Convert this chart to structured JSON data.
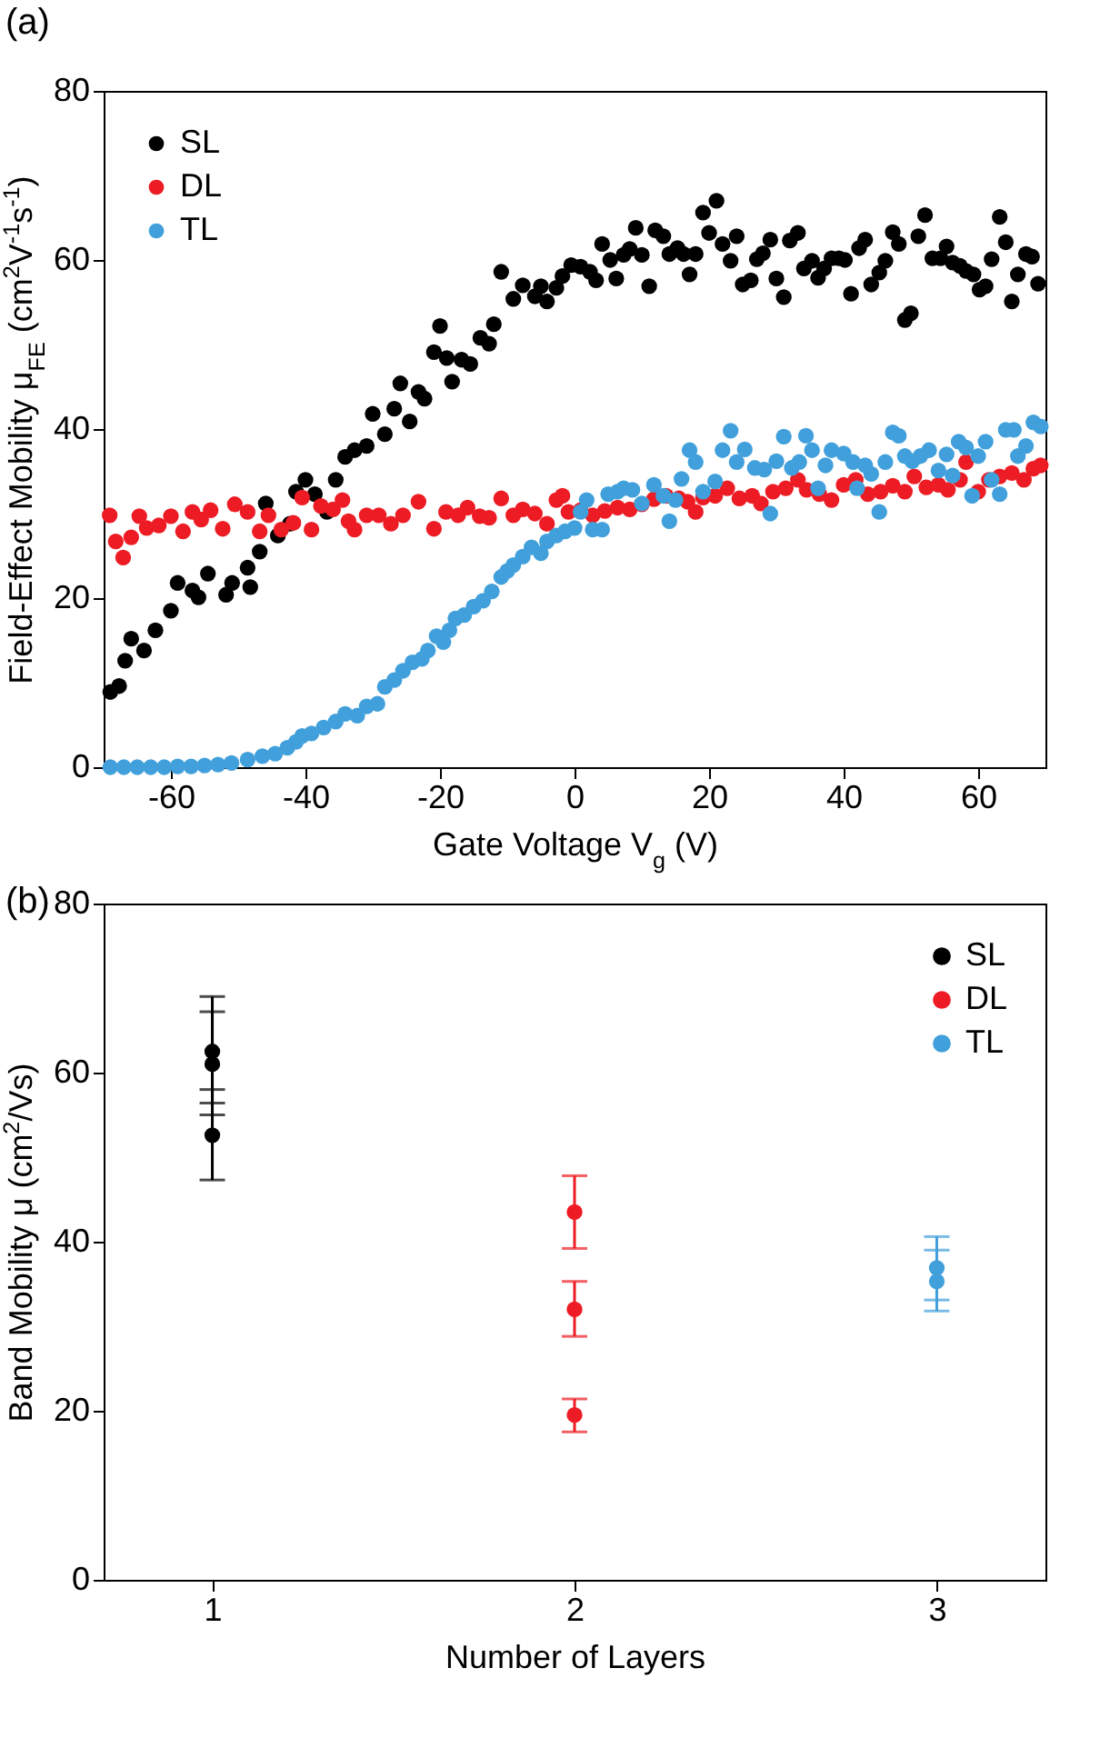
{
  "chart_data": [
    {
      "type": "scatter",
      "title": "(a)",
      "xlabel": "Gate Voltage V$_{g}$ (V)",
      "ylabel": "Field-Effect Mobility μ$_{FE}$ (cm$^{2}$V$^{-1}$s$^{-1}$)",
      "xlim": [
        -70,
        70
      ],
      "xticks": [
        -60,
        -40,
        -20,
        0,
        20,
        40,
        60
      ],
      "ylim": [
        0,
        80
      ],
      "yticks": [
        0,
        20,
        40,
        60,
        80
      ],
      "grid": false,
      "legend": "top left",
      "marker": "circle",
      "series": [
        {
          "name": "SL",
          "color": "#000000",
          "x": [
            -69,
            -67.7,
            -66.8,
            -65.9,
            -64,
            -62.3,
            -60,
            -59,
            -56.8,
            -55.9,
            -54.5,
            -51.8,
            -50.9,
            -48.6,
            -48.2,
            -46.8,
            -45.9,
            -44.1,
            -42.3,
            -41.4,
            -40,
            -38.6,
            -36.8,
            -35.5,
            -34.1,
            -32.7,
            -30.9,
            -30,
            -28.2,
            -26.8,
            -25.9,
            -24.5,
            -23.2,
            -22.3,
            -20.9,
            -20,
            -19,
            -18.2,
            -16.8,
            -15.5,
            -14,
            -12.7,
            -12,
            -10.9,
            -9.1,
            -7.7,
            -5.9,
            -5,
            -4.1,
            -2.7,
            -1.8,
            -0.5,
            0.9,
            2.3,
            3.2,
            4.1,
            5.3,
            6.2,
            7.3,
            8.2,
            9.1,
            10,
            11.1,
            12,
            13.2,
            14.1,
            15.3,
            16.2,
            17.1,
            18,
            19.1,
            20,
            21.1,
            22,
            23.2,
            24.1,
            25,
            26.2,
            27.1,
            28,
            29.1,
            30,
            31.1,
            32,
            33.2,
            34.1,
            35.3,
            36.2,
            37.1,
            38.2,
            39.3,
            40.2,
            41.1,
            42.3,
            43.2,
            44.1,
            45.3,
            46.2,
            47.3,
            48.2,
            49.1,
            50,
            51.1,
            52.1,
            53.2,
            54.4,
            55.3,
            56.2,
            57.3,
            58.2,
            59.3,
            60.2,
            61.1,
            62,
            63.2,
            64.1,
            65,
            65.9,
            67.1,
            68,
            68.9
          ],
          "values": [
            8.9,
            9.6,
            12.6,
            15.2,
            13.8,
            16.2,
            18.5,
            21.8,
            20.9,
            20.1,
            22.9,
            20.4,
            21.8,
            23.6,
            21.3,
            25.5,
            31.2,
            27.4,
            28.8,
            32.6,
            34,
            32.3,
            30.2,
            34,
            36.7,
            37.5,
            38,
            41.8,
            39.4,
            42.4,
            45.4,
            40.9,
            44.4,
            43.6,
            49.1,
            52.2,
            48.4,
            45.6,
            48.2,
            47.7,
            50.8,
            50.1,
            52.4,
            58.6,
            55.4,
            57,
            55.7,
            56.9,
            55.1,
            56.7,
            58.1,
            59.4,
            59.2,
            58.6,
            57.6,
            61.9,
            60,
            57.8,
            60.6,
            61.3,
            63.8,
            60.6,
            56.9,
            63.5,
            62.8,
            60.7,
            61.4,
            60.7,
            58.3,
            60.7,
            65.6,
            63.2,
            67,
            61.9,
            59.9,
            62.8,
            57.1,
            57.6,
            60.1,
            60.8,
            62.4,
            57.8,
            55.6,
            62.3,
            63.2,
            59,
            59.9,
            57.9,
            59,
            60.2,
            60.2,
            60,
            56,
            61.4,
            62.4,
            57.1,
            58.5,
            59.9,
            63.3,
            61.9,
            52.9,
            53.7,
            62.8,
            65.3,
            60.2,
            60.2,
            61.6,
            59.7,
            59.3,
            58.7,
            58.3,
            56.5,
            56.9,
            60.1,
            65.1,
            62.1,
            55.1,
            58.3,
            60.7,
            60.4,
            57.2
          ]
        },
        {
          "name": "DL",
          "color": "#ed1c24",
          "x": [
            -69.1,
            -68.2,
            -67.1,
            -65.9,
            -64.7,
            -63.6,
            -61.8,
            -60,
            -58.2,
            -56.8,
            -55.5,
            -54.1,
            -52.3,
            -50.5,
            -48.6,
            -46.8,
            -45.5,
            -43.6,
            -41.8,
            -40.5,
            -39.1,
            -37.7,
            -35.9,
            -34.5,
            -33.6,
            -32.7,
            -30.9,
            -29.1,
            -27.3,
            -25.5,
            -23.2,
            -20.9,
            -19.1,
            -17.3,
            -15.9,
            -14.1,
            -12.7,
            -10.9,
            -9.1,
            -7.7,
            -5.9,
            -4.1,
            -2.7,
            -1.8,
            -0.9,
            0.9,
            2.7,
            4.5,
            6.4,
            8.2,
            10,
            11.8,
            13.6,
            15.5,
            16.8,
            18,
            19.1,
            20.9,
            22.7,
            24.5,
            26.4,
            27.7,
            29.5,
            31.4,
            33.2,
            34.5,
            36.4,
            38.2,
            40,
            41.8,
            43.6,
            45.5,
            47.3,
            49.1,
            50.5,
            52.3,
            54.1,
            55.5,
            57.3,
            58.2,
            60,
            61.6,
            63.2,
            65,
            66.8,
            68.2,
            69.3
          ],
          "values": [
            29.8,
            26.7,
            24.8,
            27.2,
            29.7,
            28.3,
            28.6,
            29.7,
            27.9,
            30.2,
            29.3,
            30.4,
            28.2,
            31.1,
            30.2,
            27.9,
            29.8,
            28.1,
            28.9,
            31.9,
            28.1,
            30.9,
            30.5,
            31.6,
            29.1,
            28.1,
            29.8,
            29.8,
            28.8,
            29.8,
            31.4,
            28.2,
            30.2,
            29.8,
            30.7,
            29.7,
            29.5,
            31.8,
            29.8,
            30.5,
            30,
            28.8,
            31.6,
            32.1,
            30.2,
            30.4,
            29.8,
            30.3,
            30.7,
            30.5,
            31.1,
            31.7,
            32.1,
            31.8,
            31.4,
            30.2,
            31.9,
            32.1,
            33,
            31.8,
            32.1,
            31.2,
            32.6,
            33,
            34,
            32.8,
            32.3,
            31.6,
            33.4,
            34,
            32.3,
            32.6,
            33.3,
            32.6,
            34.4,
            33.1,
            33.4,
            32.8,
            34,
            36.1,
            32.6,
            34,
            34.4,
            34.8,
            34,
            35.3,
            35.7
          ]
        },
        {
          "name": "TL",
          "color": "#41a0db",
          "x": [
            -69,
            -67,
            -65,
            -63,
            -61,
            -59,
            -57,
            -55,
            -53,
            -51,
            -48.6,
            -46.4,
            -44.5,
            -42.7,
            -41.4,
            -40.5,
            -39.1,
            -37.3,
            -35.5,
            -34.1,
            -32.3,
            -30.9,
            -29.3,
            -28.2,
            -26.8,
            -25.5,
            -24.1,
            -22.7,
            -21.8,
            -20.5,
            -19.5,
            -18.6,
            -17.7,
            -16.4,
            -15,
            -13.6,
            -12.3,
            -10.9,
            -10,
            -9.1,
            -7.7,
            -6.4,
            -5,
            -4.1,
            -2.7,
            -1.4,
            0,
            0.9,
            1.8,
            2.7,
            4.1,
            5,
            6.4,
            7.3,
            8.6,
            10,
            11.8,
            13.2,
            14.1,
            15,
            15.9,
            17.1,
            18,
            19.1,
            20.9,
            22,
            23.2,
            24.1,
            25.3,
            26.8,
            28.2,
            29.1,
            30,
            31.1,
            32.3,
            33.4,
            34.4,
            35.3,
            36.2,
            37.3,
            38.2,
            40,
            41.4,
            42,
            43.2,
            44.1,
            45.3,
            46.2,
            47.3,
            48.2,
            49.1,
            50.2,
            51.4,
            52.7,
            54.1,
            55.3,
            56.2,
            57.1,
            58.2,
            59.1,
            60,
            61.1,
            62,
            63.2,
            64.1,
            65.3,
            65.9,
            67.1,
            68.2,
            69.3
          ],
          "values": [
            0,
            0,
            0,
            0,
            0,
            0.1,
            0.1,
            0.2,
            0.3,
            0.5,
            0.9,
            1.3,
            1.6,
            2.3,
            3,
            3.7,
            4,
            4.7,
            5.4,
            6.3,
            6.1,
            7.2,
            7.5,
            9.5,
            10.3,
            11.4,
            12.4,
            12.8,
            13.8,
            15.5,
            14.8,
            16.2,
            17.6,
            18,
            19,
            19.7,
            20.8,
            22.5,
            23.2,
            23.9,
            24.9,
            26,
            25.3,
            26.7,
            27.4,
            27.9,
            28.3,
            30.2,
            31.6,
            28.1,
            28.1,
            32.3,
            32.6,
            33,
            32.8,
            31.2,
            33.4,
            32.1,
            29.1,
            31.6,
            34.1,
            37.5,
            36.1,
            32.6,
            33.8,
            37.5,
            39.8,
            36.1,
            37.6,
            35.4,
            35.2,
            30,
            36.2,
            39.1,
            35.4,
            36.1,
            39.2,
            37.5,
            33,
            35.7,
            37.5,
            37.1,
            36.1,
            33,
            35.7,
            34.7,
            30.2,
            36.1,
            39.6,
            39.2,
            36.8,
            36.2,
            36.8,
            37.5,
            35.1,
            37,
            34.5,
            38.5,
            37.8,
            32.1,
            36.8,
            38.5,
            34,
            32.3,
            39.9,
            39.9,
            36.8,
            38,
            40.8,
            40.3
          ]
        }
      ]
    },
    {
      "type": "scatter",
      "title": "(b)",
      "xlabel": "Number of Layers",
      "ylabel": "Band Mobility μ (cm$^{2}$/Vs)",
      "xlim": [
        0.7,
        3.3
      ],
      "xticks": [
        1,
        2,
        3
      ],
      "ylim": [
        0,
        80
      ],
      "yticks": [
        0,
        20,
        40,
        60,
        80
      ],
      "grid": false,
      "legend": "top right",
      "marker": "circle",
      "series": [
        {
          "name": "SL",
          "color": "#000000",
          "x": [
            1,
            1,
            1
          ],
          "values": [
            62.5,
            61,
            52.6
          ],
          "errors": [
            [
              56.4,
              69
            ],
            [
              55,
              67.2
            ],
            [
              47.3,
              58
            ]
          ]
        },
        {
          "name": "DL",
          "color": "#ed1c24",
          "x": [
            2,
            2,
            2
          ],
          "values": [
            43.5,
            32,
            19.5
          ],
          "errors": [
            [
              39.2,
              47.8
            ],
            [
              28.8,
              35.3
            ],
            [
              17.5,
              21.4
            ]
          ]
        },
        {
          "name": "TL",
          "color": "#41a0db",
          "x": [
            3,
            3
          ],
          "values": [
            36.9,
            35.3
          ],
          "errors": [
            [
              33.1,
              40.6
            ],
            [
              31.8,
              39
            ]
          ]
        }
      ]
    }
  ]
}
